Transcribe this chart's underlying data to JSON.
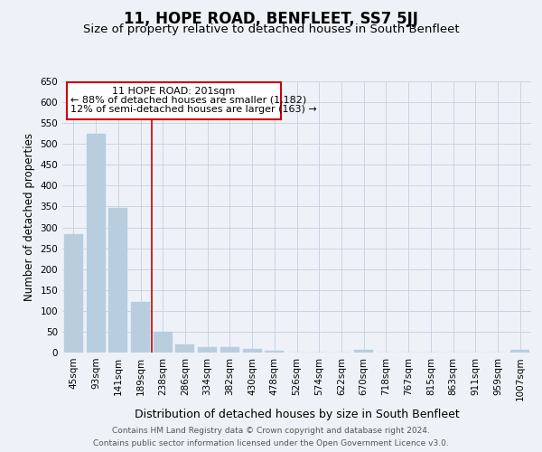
{
  "title": "11, HOPE ROAD, BENFLEET, SS7 5JJ",
  "subtitle": "Size of property relative to detached houses in South Benfleet",
  "xlabel": "Distribution of detached houses by size in South Benfleet",
  "ylabel": "Number of detached properties",
  "footer_line1": "Contains HM Land Registry data © Crown copyright and database right 2024.",
  "footer_line2": "Contains public sector information licensed under the Open Government Licence v3.0.",
  "property_label": "11 HOPE ROAD: 201sqm",
  "annotation_line1": "← 88% of detached houses are smaller (1,182)",
  "annotation_line2": "12% of semi-detached houses are larger (163) →",
  "bar_color": "#b8cedf",
  "bar_edge_color": "#b8cedf",
  "vline_color": "#cc0000",
  "categories": [
    "45sqm",
    "93sqm",
    "141sqm",
    "189sqm",
    "238sqm",
    "286sqm",
    "334sqm",
    "382sqm",
    "430sqm",
    "478sqm",
    "526sqm",
    "574sqm",
    "622sqm",
    "670sqm",
    "718sqm",
    "767sqm",
    "815sqm",
    "863sqm",
    "911sqm",
    "959sqm",
    "1007sqm"
  ],
  "values": [
    284,
    525,
    347,
    122,
    49,
    20,
    14,
    12,
    9,
    5,
    0,
    0,
    0,
    6,
    0,
    0,
    0,
    0,
    0,
    0,
    6
  ],
  "vline_pos": 3.5,
  "ylim": [
    0,
    650
  ],
  "yticks": [
    0,
    50,
    100,
    150,
    200,
    250,
    300,
    350,
    400,
    450,
    500,
    550,
    600,
    650
  ],
  "background_color": "#eef2f8",
  "grid_color": "#c5cfe0",
  "title_fontsize": 12,
  "subtitle_fontsize": 9.5,
  "tick_fontsize": 7.5,
  "ylabel_fontsize": 8.5,
  "xlabel_fontsize": 9,
  "footer_fontsize": 6.5
}
